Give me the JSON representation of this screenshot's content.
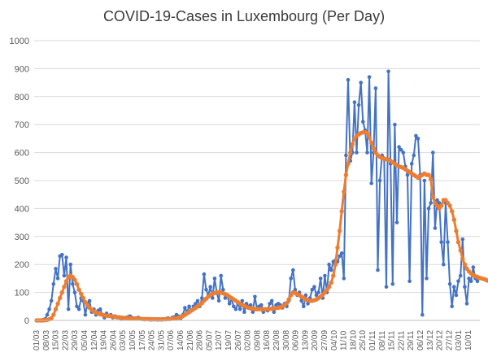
{
  "chart_data": {
    "type": "line",
    "title": "COVID-19-Cases in Luxembourg (Per Day)",
    "xlabel": "",
    "ylabel": "",
    "ylim": [
      0,
      1000
    ],
    "yticks": [
      0,
      100,
      200,
      300,
      400,
      500,
      600,
      700,
      800,
      900,
      1000
    ],
    "grid": "horizontal",
    "legend": "none",
    "x_tick_labels": [
      "01/03",
      "08/03",
      "15/03",
      "22/03",
      "29/03",
      "05/04",
      "12/04",
      "19/04",
      "26/04",
      "03/05",
      "10/05",
      "17/05",
      "24/05",
      "31/05",
      "07/06",
      "14/06",
      "21/06",
      "28/06",
      "05/07",
      "12/07",
      "19/07",
      "26/07",
      "02/08",
      "09/08",
      "16/08",
      "23/08",
      "30/08",
      "06/09",
      "13/09",
      "20/09",
      "27/09",
      "04/10",
      "11/10",
      "18/10",
      "25/10",
      "01/11",
      "08/11",
      "15/11",
      "22/11",
      "29/11",
      "06/12",
      "13/12",
      "20/12",
      "27/12",
      "03/01",
      "10/01"
    ],
    "series": [
      {
        "color": "#4472C4",
        "values": [
          0,
          0,
          0,
          2,
          5,
          20,
          40,
          70,
          130,
          185,
          150,
          230,
          235,
          160,
          225,
          40,
          200,
          130,
          100,
          50,
          40,
          80,
          70,
          20,
          60,
          70,
          30,
          40,
          20,
          35,
          40,
          20,
          10,
          25,
          15,
          20,
          10,
          15,
          10,
          10,
          5,
          10,
          8,
          12,
          15,
          10,
          5,
          8,
          10,
          5,
          5,
          3,
          5,
          3,
          2,
          3,
          4,
          2,
          3,
          2,
          5,
          6,
          8,
          5,
          10,
          12,
          20,
          15,
          8,
          20,
          45,
          30,
          50,
          35,
          50,
          60,
          70,
          50,
          80,
          165,
          110,
          90,
          120,
          80,
          150,
          100,
          70,
          160,
          110,
          80,
          90,
          60,
          75,
          50,
          40,
          60,
          40,
          70,
          30,
          60,
          50,
          55,
          30,
          85,
          40,
          50,
          55,
          30,
          40,
          35,
          60,
          70,
          30,
          55,
          60,
          55,
          45,
          60,
          50,
          70,
          150,
          180,
          110,
          90,
          100,
          70,
          50,
          90,
          60,
          80,
          110,
          120,
          90,
          100,
          150,
          80,
          160,
          100,
          200,
          180,
          210,
          215,
          210,
          230,
          240,
          150,
          590,
          860,
          570,
          600,
          780,
          600,
          770,
          850,
          710,
          680,
          600,
          870,
          490,
          600,
          830,
          180,
          500,
          590,
          580,
          120,
          890,
          560,
          130,
          700,
          350,
          620,
          610,
          600,
          550,
          520,
          140,
          560,
          590,
          660,
          650,
          520,
          20,
          500,
          150,
          400,
          420,
          600,
          330,
          430,
          420,
          280,
          200,
          420,
          280,
          130,
          50,
          120,
          90,
          140,
          160,
          290,
          120,
          60,
          150,
          140,
          190,
          150,
          140
        ]
      },
      {
        "color": "#ED7D31",
        "values": [
          0,
          0,
          0,
          0,
          1,
          2,
          4,
          8,
          20,
          40,
          60,
          80,
          100,
          120,
          140,
          155,
          160,
          155,
          145,
          130,
          110,
          95,
          80,
          65,
          55,
          45,
          38,
          32,
          28,
          25,
          22,
          20,
          18,
          17,
          16,
          15,
          14,
          13,
          12,
          11,
          10,
          9,
          9,
          8,
          8,
          7,
          7,
          6,
          6,
          6,
          5,
          5,
          5,
          5,
          4,
          4,
          4,
          4,
          4,
          4,
          4,
          4,
          5,
          5,
          6,
          7,
          8,
          10,
          12,
          15,
          20,
          25,
          30,
          35,
          40,
          45,
          50,
          55,
          62,
          70,
          78,
          85,
          90,
          95,
          98,
          100,
          100,
          99,
          97,
          94,
          90,
          85,
          80,
          75,
          70,
          65,
          60,
          55,
          52,
          48,
          45,
          43,
          42,
          40,
          40,
          40,
          40,
          40,
          40,
          40,
          41,
          42,
          43,
          44,
          45,
          47,
          50,
          55,
          62,
          75,
          90,
          100,
          98,
          94,
          90,
          85,
          80,
          75,
          72,
          70,
          70,
          72,
          75,
          80,
          85,
          92,
          100,
          110,
          120,
          135,
          160,
          200,
          260,
          320,
          390,
          460,
          520,
          560,
          600,
          630,
          650,
          660,
          665,
          670,
          672,
          673,
          670,
          655,
          635,
          615,
          600,
          590,
          585,
          580,
          578,
          576,
          575,
          570,
          565,
          560,
          555,
          550,
          548,
          545,
          540,
          535,
          530,
          525,
          520,
          515,
          510,
          515,
          520,
          525,
          520,
          520,
          505,
          440,
          420,
          410,
          400,
          410,
          430,
          430,
          420,
          410,
          390,
          360,
          320,
          280,
          250,
          220,
          200,
          185,
          175,
          168,
          162,
          158,
          155,
          152,
          150,
          148,
          145,
          142,
          140,
          138,
          136,
          134,
          132
        ]
      }
    ]
  }
}
